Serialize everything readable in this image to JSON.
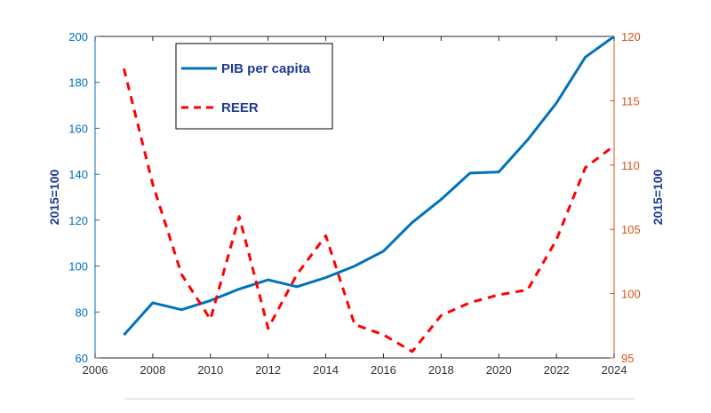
{
  "chart_data": {
    "type": "line",
    "x": [
      2007,
      2008,
      2009,
      2010,
      2011,
      2012,
      2013,
      2014,
      2015,
      2016,
      2017,
      2018,
      2019,
      2020,
      2021,
      2022,
      2023,
      2024
    ],
    "x_ticks": [
      "2006",
      "2008",
      "2010",
      "2012",
      "2014",
      "2016",
      "2018",
      "2020",
      "2022",
      "2024"
    ],
    "xlim": [
      2006,
      2024
    ],
    "ylabel_left": "2015=100",
    "ylabel_right": "2015=100",
    "ylim_left": [
      60,
      200
    ],
    "yticks_left": [
      "60",
      "80",
      "100",
      "120",
      "140",
      "160",
      "180",
      "200"
    ],
    "ylim_right": [
      95,
      120
    ],
    "yticks_right": [
      "95",
      "100",
      "105",
      "110",
      "115",
      "120"
    ],
    "grid": false,
    "legend_position": "top-left",
    "series": [
      {
        "name": "PIB per capita",
        "axis": "left",
        "style": "solid",
        "color": "#0072bd",
        "values": [
          70,
          84,
          81,
          85,
          90,
          94,
          91,
          95,
          100,
          106.5,
          119,
          129,
          140.5,
          141,
          155,
          171,
          191,
          200
        ]
      },
      {
        "name": "REER",
        "axis": "right",
        "style": "dashed",
        "color": "#ff0000",
        "values": [
          117.5,
          108.5,
          101.5,
          98,
          106,
          97.3,
          101.5,
          104.5,
          97.6,
          96.8,
          95.5,
          98.3,
          99.3,
          99.9,
          100.3,
          104.2,
          109.8,
          111.5
        ]
      }
    ]
  }
}
